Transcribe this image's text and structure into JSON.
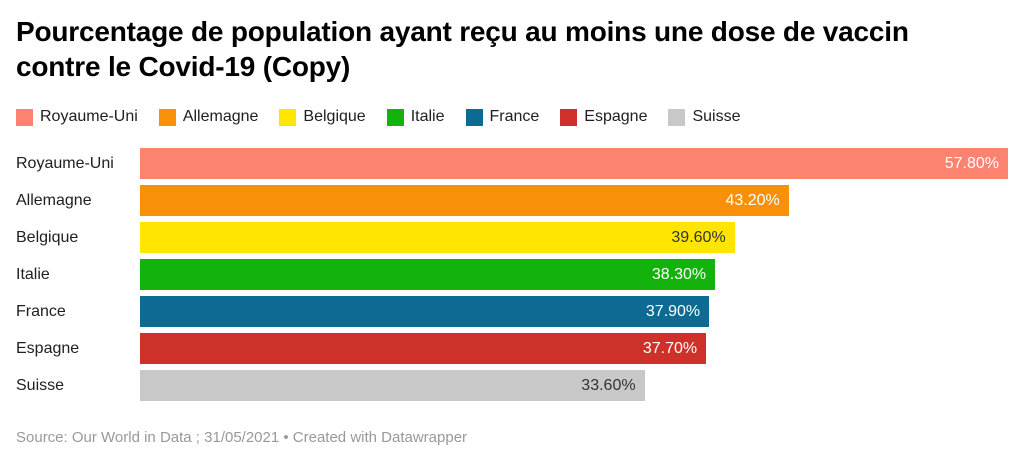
{
  "title": "Pourcentage de population ayant reçu au moins une dose de vaccin contre le Covid-19 (Copy)",
  "legend": {
    "items": [
      {
        "label": "Royaume-Uni",
        "color": "#FC8370"
      },
      {
        "label": "Allemagne",
        "color": "#F89008"
      },
      {
        "label": "Belgique",
        "color": "#FFE500"
      },
      {
        "label": "Italie",
        "color": "#14B20C"
      },
      {
        "label": "France",
        "color": "#0D6B93"
      },
      {
        "label": "Espagne",
        "color": "#CE302A"
      },
      {
        "label": "Suisse",
        "color": "#C8C8C8"
      }
    ]
  },
  "chart_data": {
    "type": "bar",
    "orientation": "horizontal",
    "title": "Pourcentage de population ayant reçu au moins une dose de vaccin contre le Covid-19 (Copy)",
    "categories": [
      "Royaume-Uni",
      "Allemagne",
      "Belgique",
      "Italie",
      "France",
      "Espagne",
      "Suisse"
    ],
    "values": [
      57.8,
      43.2,
      39.6,
      38.3,
      37.9,
      37.7,
      33.6
    ],
    "value_labels": [
      "57.80%",
      "43.20%",
      "39.60%",
      "38.30%",
      "37.90%",
      "37.70%",
      "33.60%"
    ],
    "colors": [
      "#FC8370",
      "#F89008",
      "#FFE500",
      "#14B20C",
      "#0D6B93",
      "#CE302A",
      "#C8C8C8"
    ],
    "value_label_colors": [
      "#ffffff",
      "#ffffff",
      "#333333",
      "#ffffff",
      "#ffffff",
      "#ffffff",
      "#333333"
    ],
    "xlabel": "",
    "ylabel": "",
    "xlim": [
      0,
      57.8
    ],
    "grid": false,
    "legend_position": "top"
  },
  "footer": {
    "text": "Source: Our World in Data ; 31/05/2021 • Created with Datawrapper"
  }
}
